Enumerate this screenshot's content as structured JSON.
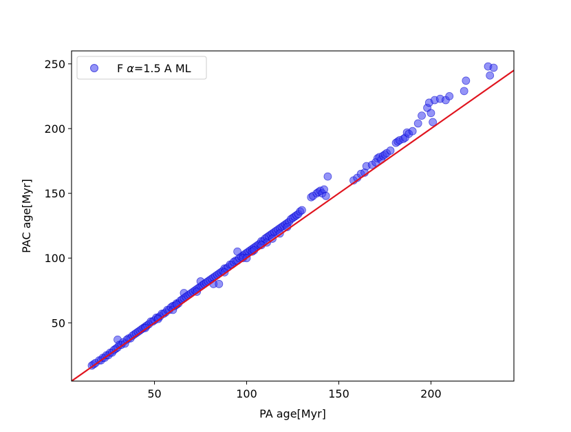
{
  "chart_data": {
    "type": "scatter",
    "title": "",
    "xlabel": "PA age[Myr]",
    "ylabel": "PAC age[Myr]",
    "xlim": [
      5,
      245
    ],
    "ylim": [
      5,
      260
    ],
    "xticks": [
      50,
      100,
      150,
      200
    ],
    "yticks": [
      50,
      100,
      150,
      200,
      250
    ],
    "grid": false,
    "legend_position": "top-left",
    "series": [
      {
        "name": "F α=1.5 A ML",
        "label_prefix": "F ",
        "label_symbol": "α",
        "label_suffix": "=1.5 A ML",
        "marker_color": "#3c3cf0",
        "marker_edge": "#0000cd",
        "points": [
          [
            16,
            17
          ],
          [
            17,
            18
          ],
          [
            18,
            19
          ],
          [
            20,
            21
          ],
          [
            21,
            21
          ],
          [
            22,
            23
          ],
          [
            23,
            23
          ],
          [
            24,
            25
          ],
          [
            25,
            25
          ],
          [
            26,
            27
          ],
          [
            27,
            27
          ],
          [
            28,
            29
          ],
          [
            29,
            30
          ],
          [
            30,
            31
          ],
          [
            30,
            37
          ],
          [
            31,
            33
          ],
          [
            32,
            33
          ],
          [
            33,
            35
          ],
          [
            34,
            34
          ],
          [
            35,
            37
          ],
          [
            36,
            38
          ],
          [
            37,
            38
          ],
          [
            38,
            40
          ],
          [
            39,
            41
          ],
          [
            40,
            42
          ],
          [
            41,
            43
          ],
          [
            42,
            44
          ],
          [
            43,
            45
          ],
          [
            44,
            46
          ],
          [
            45,
            47
          ],
          [
            46,
            48
          ],
          [
            47,
            49
          ],
          [
            48,
            51
          ],
          [
            49,
            51
          ],
          [
            50,
            52
          ],
          [
            51,
            54
          ],
          [
            52,
            54
          ],
          [
            53,
            55
          ],
          [
            54,
            57
          ],
          [
            55,
            57
          ],
          [
            56,
            58
          ],
          [
            57,
            60
          ],
          [
            58,
            60
          ],
          [
            59,
            62
          ],
          [
            60,
            63
          ],
          [
            60,
            60
          ],
          [
            61,
            63
          ],
          [
            62,
            65
          ],
          [
            63,
            65
          ],
          [
            64,
            67
          ],
          [
            65,
            68
          ],
          [
            66,
            69
          ],
          [
            66,
            73
          ],
          [
            67,
            70
          ],
          [
            68,
            71
          ],
          [
            69,
            72
          ],
          [
            70,
            73
          ],
          [
            71,
            74
          ],
          [
            72,
            75
          ],
          [
            73,
            76
          ],
          [
            74,
            77
          ],
          [
            75,
            78
          ],
          [
            75,
            82
          ],
          [
            76,
            79
          ],
          [
            77,
            80
          ],
          [
            78,
            81
          ],
          [
            79,
            82
          ],
          [
            80,
            83
          ],
          [
            81,
            84
          ],
          [
            82,
            85
          ],
          [
            82,
            80
          ],
          [
            83,
            86
          ],
          [
            84,
            87
          ],
          [
            85,
            88
          ],
          [
            86,
            89
          ],
          [
            87,
            90
          ],
          [
            88,
            92
          ],
          [
            89,
            92
          ],
          [
            90,
            93
          ],
          [
            91,
            95
          ],
          [
            92,
            95
          ],
          [
            93,
            97
          ],
          [
            94,
            98
          ],
          [
            95,
            98
          ],
          [
            96,
            100
          ],
          [
            97,
            101
          ],
          [
            98,
            102
          ],
          [
            99,
            103
          ],
          [
            100,
            104
          ],
          [
            101,
            105
          ],
          [
            102,
            106
          ],
          [
            103,
            107
          ],
          [
            104,
            108
          ],
          [
            105,
            109
          ],
          [
            106,
            110
          ],
          [
            107,
            111
          ],
          [
            108,
            113
          ],
          [
            109,
            113
          ],
          [
            110,
            115
          ],
          [
            111,
            116
          ],
          [
            112,
            117
          ],
          [
            113,
            118
          ],
          [
            114,
            119
          ],
          [
            115,
            120
          ],
          [
            116,
            121
          ],
          [
            117,
            122
          ],
          [
            118,
            123
          ],
          [
            119,
            124
          ],
          [
            120,
            125
          ],
          [
            121,
            126
          ],
          [
            122,
            127
          ],
          [
            123,
            128
          ],
          [
            124,
            130
          ],
          [
            125,
            131
          ],
          [
            126,
            132
          ],
          [
            127,
            133
          ],
          [
            128,
            134
          ],
          [
            129,
            136
          ],
          [
            130,
            137
          ],
          [
            85,
            80
          ],
          [
            95,
            105
          ],
          [
            103,
            105
          ],
          [
            111,
            112
          ],
          [
            118,
            119
          ],
          [
            104,
            106
          ],
          [
            135,
            147
          ],
          [
            136,
            148
          ],
          [
            138,
            150
          ],
          [
            139,
            151
          ],
          [
            140,
            152
          ],
          [
            141,
            150
          ],
          [
            142,
            153
          ],
          [
            143,
            148
          ],
          [
            144,
            163
          ],
          [
            158,
            160
          ],
          [
            160,
            162
          ],
          [
            162,
            165
          ],
          [
            164,
            166
          ],
          [
            165,
            171
          ],
          [
            168,
            172
          ],
          [
            170,
            174
          ],
          [
            171,
            177
          ],
          [
            172,
            178
          ],
          [
            173,
            176
          ],
          [
            174,
            179
          ],
          [
            175,
            180
          ],
          [
            176,
            181
          ],
          [
            178,
            183
          ],
          [
            181,
            189
          ],
          [
            182,
            190
          ],
          [
            183,
            191
          ],
          [
            185,
            192
          ],
          [
            186,
            193
          ],
          [
            187,
            197
          ],
          [
            188,
            196
          ],
          [
            190,
            198
          ],
          [
            193,
            204
          ],
          [
            195,
            210
          ],
          [
            198,
            216
          ],
          [
            199,
            220
          ],
          [
            200,
            212
          ],
          [
            201,
            205
          ],
          [
            202,
            222
          ],
          [
            205,
            223
          ],
          [
            208,
            222
          ],
          [
            210,
            225
          ],
          [
            218,
            229
          ],
          [
            219,
            237
          ],
          [
            231,
            248
          ],
          [
            232,
            241
          ],
          [
            234,
            247
          ],
          [
            45,
            46
          ],
          [
            52,
            53
          ],
          [
            62,
            64
          ],
          [
            73,
            74
          ],
          [
            88,
            89
          ],
          [
            98,
            100
          ],
          [
            100,
            100
          ],
          [
            108,
            110
          ],
          [
            114,
            115
          ],
          [
            122,
            124
          ]
        ]
      },
      {
        "name": "",
        "type": "line",
        "line_color": "#e0141e",
        "points": [
          [
            5,
            5
          ],
          [
            245,
            245
          ]
        ]
      }
    ]
  }
}
